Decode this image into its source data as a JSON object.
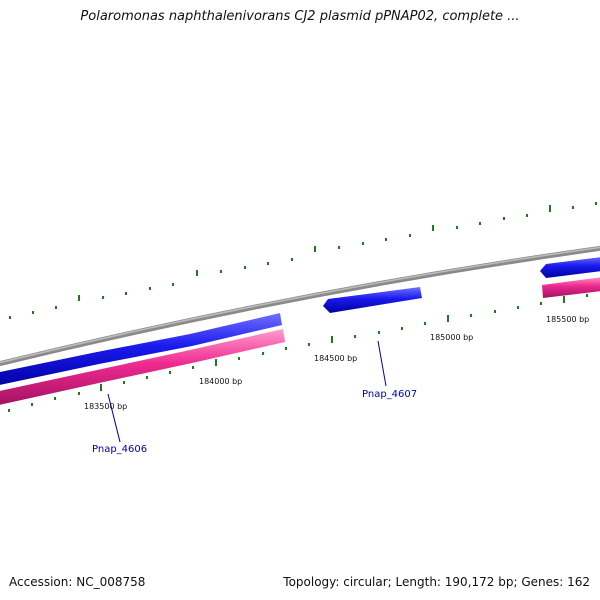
{
  "header": {
    "title": "Polaromonas naphthalenivorans CJ2 plasmid pPNAP02, complete ..."
  },
  "footer": {
    "accession": "Accession: NC_008758",
    "stats": "Topology: circular; Length: 190,172 bp; Genes: 162"
  },
  "map": {
    "tick_labels": [
      "183500 bp",
      "184000 bp",
      "184500 bp",
      "185000 bp",
      "185500 bp"
    ],
    "gene_labels": [
      "Pnap_4606",
      "Pnap_4607"
    ],
    "colors": {
      "backbone": "#8a8a8a",
      "forward_gene": "#1010e0",
      "reverse_gene": "#ee2a90",
      "tick": "#1e7a1e",
      "gene_label": "#0000a8"
    }
  }
}
